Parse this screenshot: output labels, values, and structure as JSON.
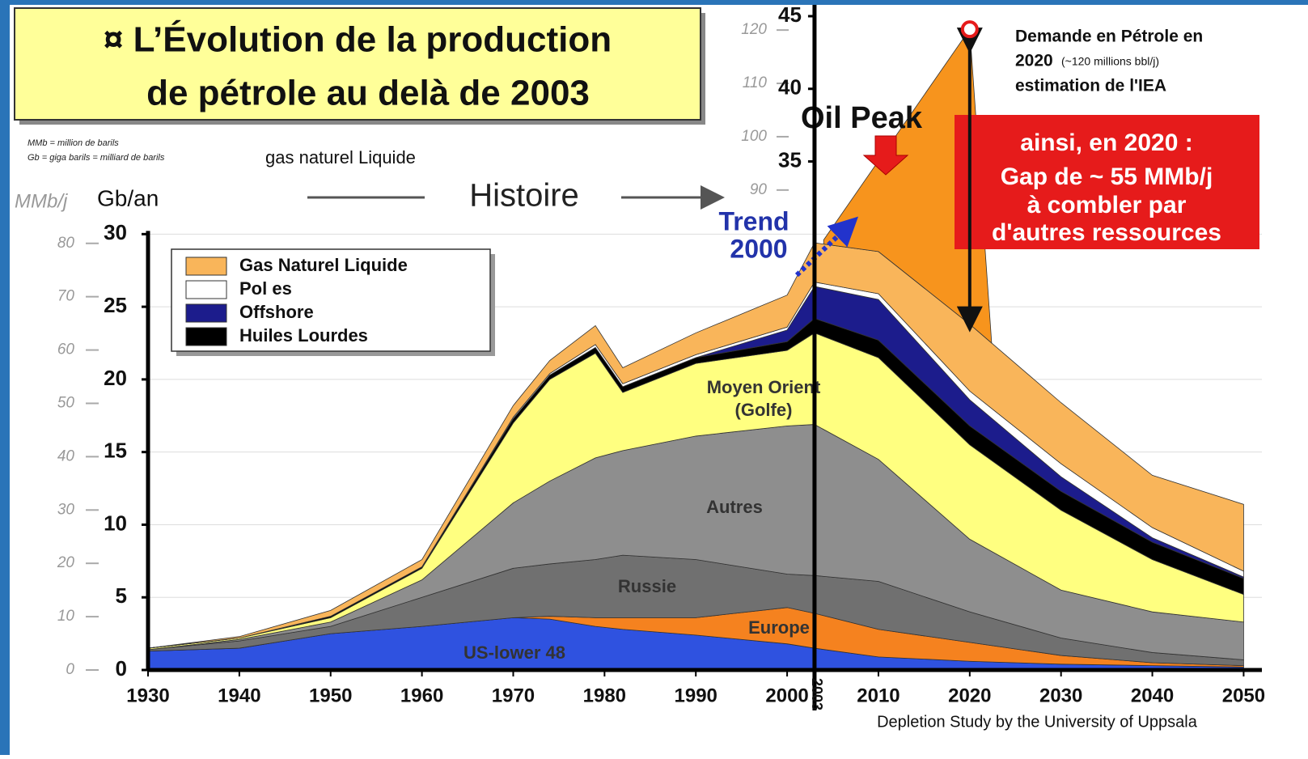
{
  "chart_data": {
    "type": "stacked_area",
    "title": [
      "¤ L’Évolution de la production",
      "de pétrole au delà de 2003"
    ],
    "notes": [
      "MMb = million de barils",
      "Gb = giga barils = milliard de barils"
    ],
    "subtitle": "gas naturel Liquide",
    "ylabel": "Gb/an",
    "y2label": "MMb/j",
    "history_label": "Histoire",
    "trend": [
      "Trend",
      "2000"
    ],
    "peak_label": "Oil Peak",
    "peak_year": 2003,
    "demand_text": [
      "Demande en Pétrole en",
      "2020",
      "(~120 millions bbl/j)",
      "estimation de l'IEA"
    ],
    "gap_text": [
      "ainsi, en 2020 :",
      "Gap de ~ 55 MMb/j",
      "à combler par",
      "d'autres ressources"
    ],
    "source": "Depletion Study by the University of Uppsala",
    "x": [
      1930,
      1940,
      1950,
      1960,
      1970,
      1974,
      1979,
      1982,
      1990,
      2000,
      2003,
      2010,
      2020,
      2030,
      2040,
      2050
    ],
    "series": [
      {
        "name": "US-lower 48",
        "color": "#2f52e0",
        "legend": false,
        "values": [
          1.3,
          1.5,
          2.5,
          3.0,
          3.6,
          3.5,
          3.0,
          2.8,
          2.4,
          1.8,
          1.5,
          0.9,
          0.6,
          0.4,
          0.3,
          0.2
        ]
      },
      {
        "name": "Europe",
        "color": "#f5821f",
        "legend": false,
        "values": [
          0,
          0,
          0,
          0,
          0,
          0.2,
          0.6,
          0.8,
          1.2,
          2.5,
          2.4,
          1.9,
          1.3,
          0.6,
          0.2,
          0.1
        ]
      },
      {
        "name": "Russie",
        "color": "#707070",
        "legend": false,
        "values": [
          0.1,
          0.5,
          0.5,
          2.0,
          3.4,
          3.6,
          4.0,
          4.3,
          4.0,
          2.3,
          2.6,
          3.3,
          2.1,
          1.2,
          0.7,
          0.4
        ]
      },
      {
        "name": "Autres",
        "color": "#8e8e8e",
        "legend": false,
        "values": [
          0,
          0.1,
          0.3,
          1.2,
          4.5,
          5.7,
          7.0,
          7.2,
          8.5,
          10.2,
          10.4,
          8.4,
          5.0,
          3.3,
          2.8,
          2.6
        ]
      },
      {
        "name": [
          "Moyen Orient",
          "(Golfe)"
        ],
        "color": "#ffff80",
        "legend": false,
        "values": [
          0.1,
          0.1,
          0.3,
          0.8,
          5.5,
          7.0,
          7.2,
          4.0,
          5.0,
          5.2,
          6.3,
          7.0,
          6.5,
          5.5,
          3.6,
          1.9
        ]
      },
      {
        "name": "Huiles Lourdes",
        "color": "#000000",
        "legend": true,
        "values": [
          0,
          0,
          0.1,
          0.1,
          0.3,
          0.3,
          0.4,
          0.4,
          0.4,
          0.6,
          1.0,
          1.2,
          1.3,
          1.3,
          1.2,
          1.1
        ]
      },
      {
        "name": "Offshore",
        "color": "#1c1c8c",
        "legend": true,
        "values": [
          0,
          0,
          0,
          0,
          0,
          0,
          0,
          0,
          0,
          0.8,
          2.2,
          2.8,
          1.8,
          1.0,
          0.3,
          0.1
        ]
      },
      {
        "name": "Pol es",
        "color": "#ffffff",
        "legend": true,
        "values": [
          0,
          0,
          0,
          0,
          0.1,
          0.1,
          0.2,
          0.2,
          0.2,
          0.2,
          0.3,
          0.4,
          0.6,
          0.9,
          0.7,
          0.4
        ]
      },
      {
        "name": "Gas Naturel Liquide",
        "color": "#f9b55a",
        "legend": true,
        "values": [
          0,
          0.1,
          0.4,
          0.5,
          0.8,
          0.9,
          1.3,
          1.1,
          1.5,
          2.2,
          2.7,
          2.9,
          4.6,
          4.2,
          3.6,
          4.6
        ]
      }
    ],
    "demand": {
      "color": "#f7941d",
      "x": [
        2004,
        2020
      ],
      "values": [
        29.6,
        44.1
      ]
    },
    "xlim": [
      1930,
      2052
    ],
    "xticks": [
      1930,
      1940,
      1950,
      1960,
      1970,
      1980,
      1990,
      2000,
      2010,
      2020,
      2030,
      2040,
      2050
    ],
    "ylim": [
      0,
      45
    ],
    "yticks": [
      0,
      5,
      10,
      15,
      20,
      25,
      30,
      35,
      40,
      45
    ],
    "y2lim": [
      0,
      122.6
    ],
    "y2ticks": [
      0,
      10,
      20,
      30,
      40,
      50,
      60,
      70,
      80,
      90,
      100,
      110,
      120
    ],
    "grid": true
  }
}
